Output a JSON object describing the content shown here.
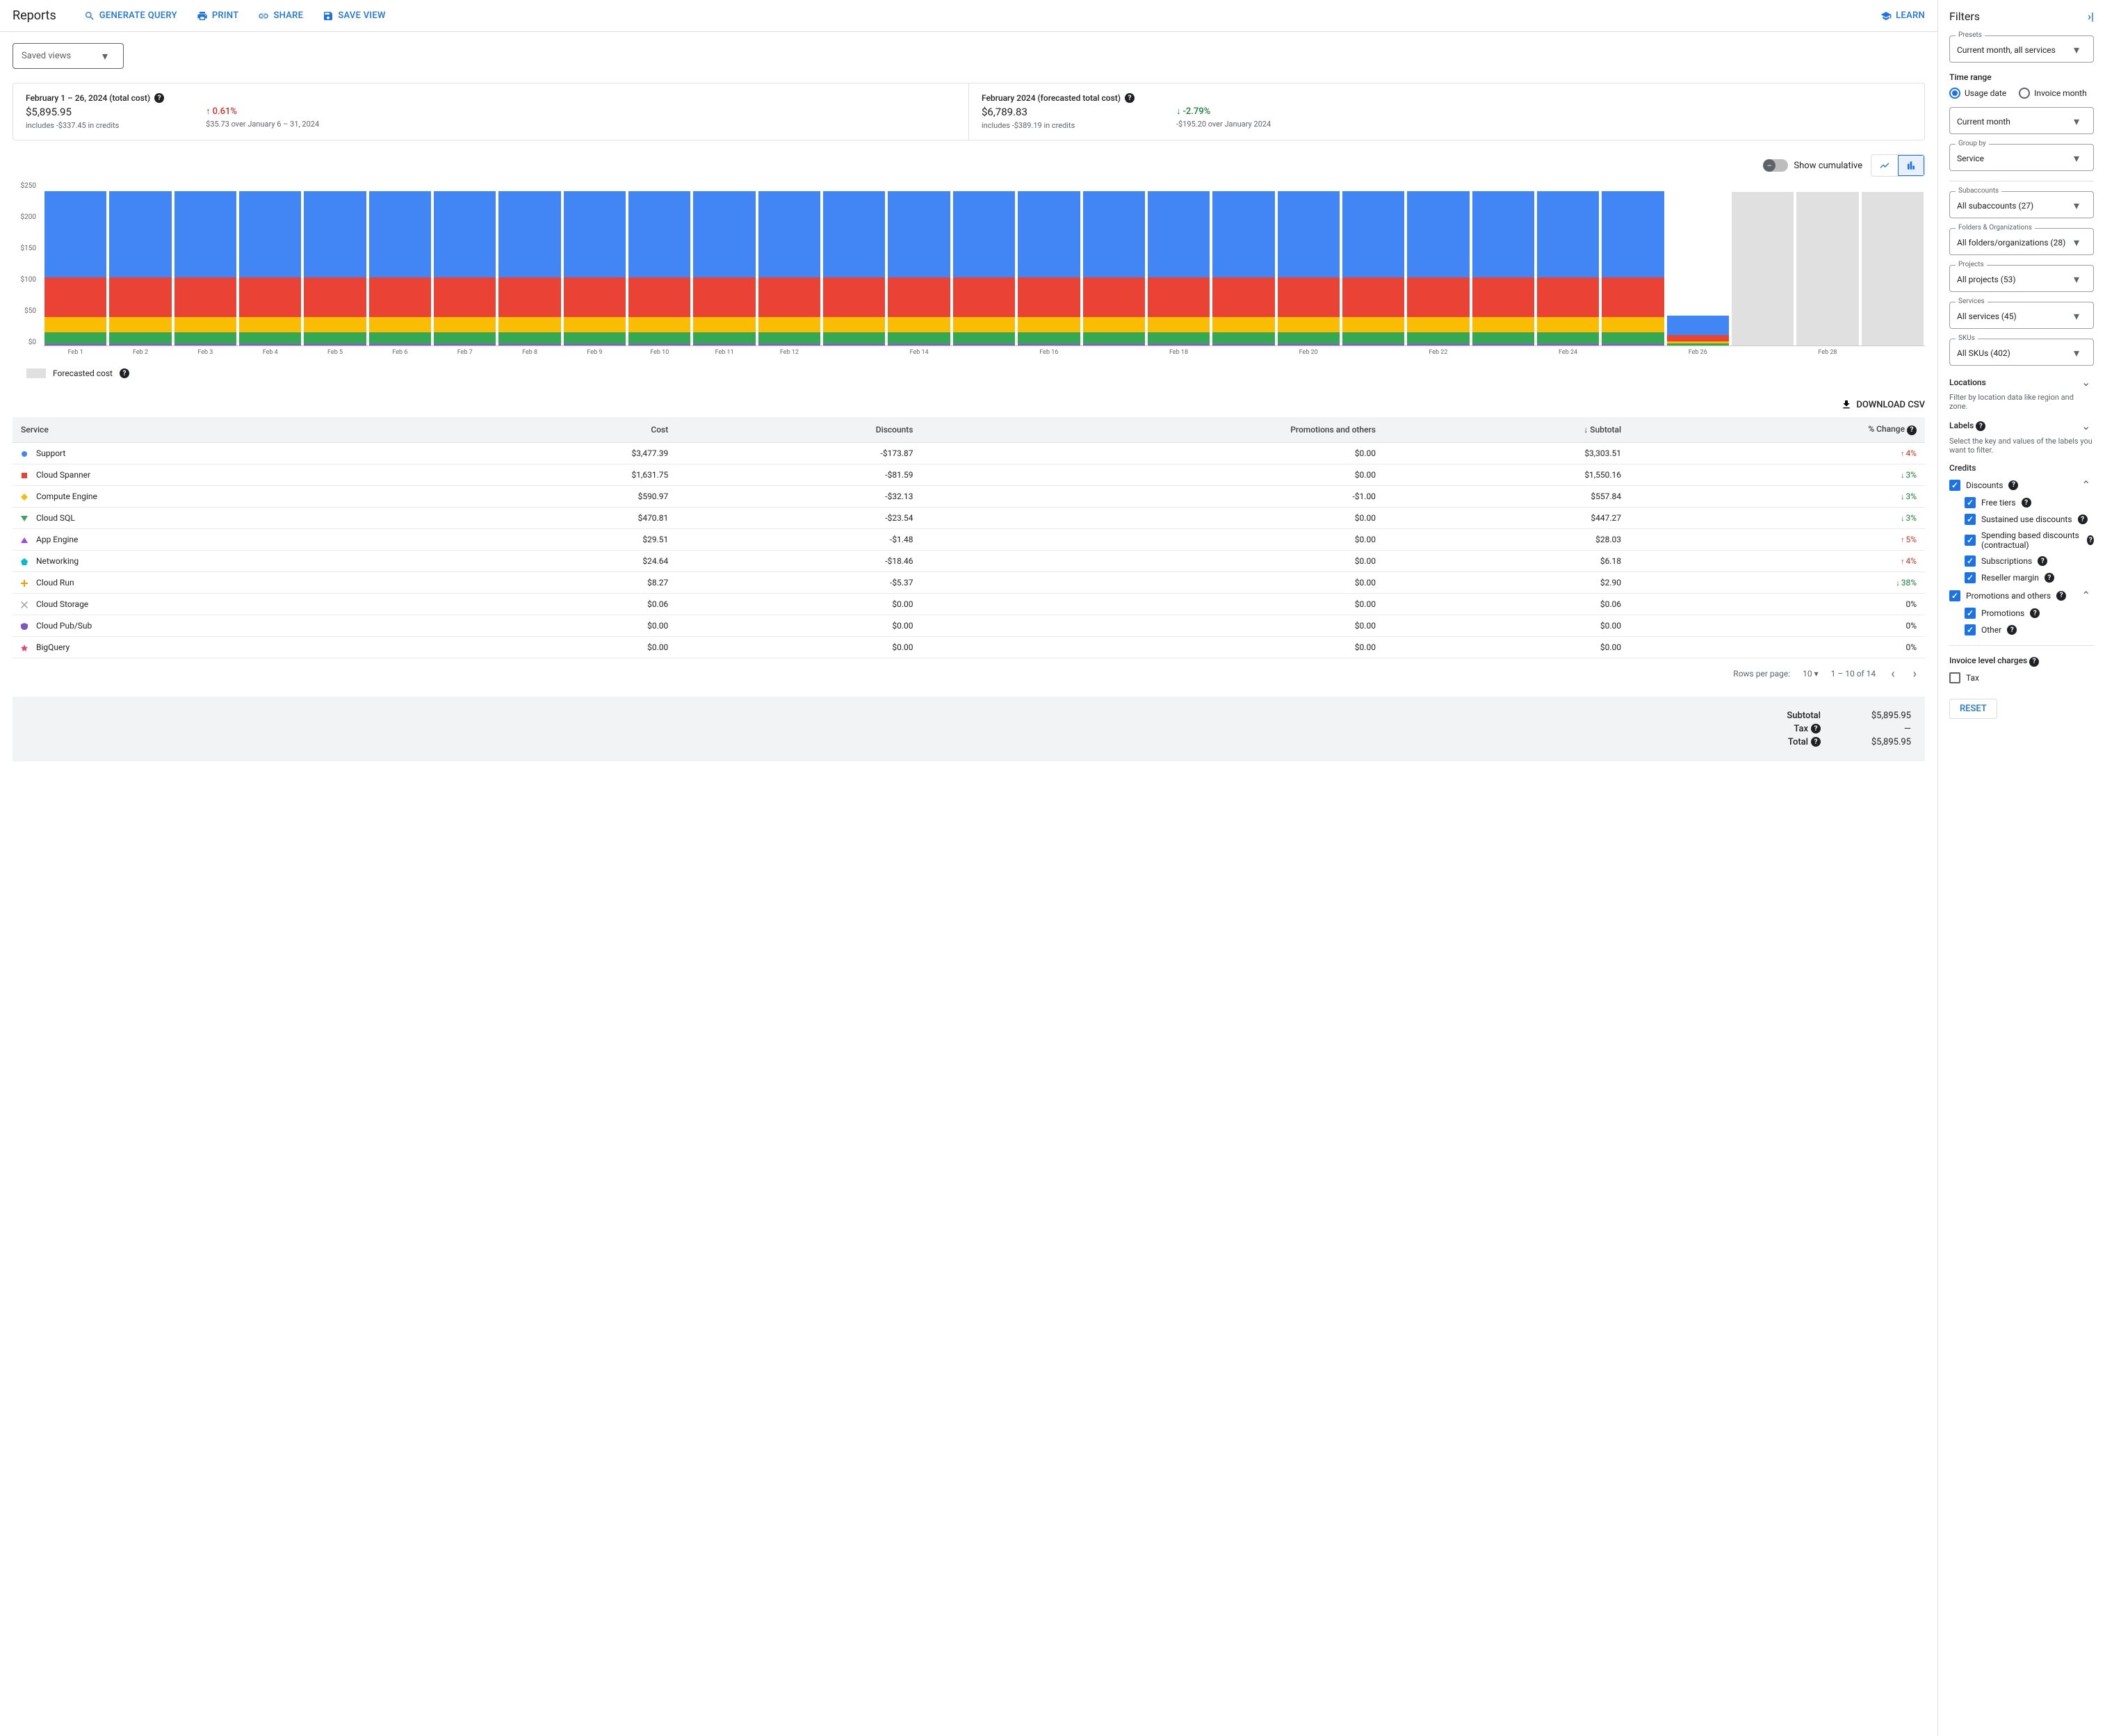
{
  "header": {
    "title": "Reports",
    "actions": {
      "generate_query": "GENERATE QUERY",
      "print": "PRINT",
      "share": "SHARE",
      "save_view": "SAVE VIEW",
      "learn": "LEARN"
    }
  },
  "saved_views_label": "Saved views",
  "summary": {
    "left": {
      "title": "February 1 – 26, 2024 (total cost)",
      "amount": "$5,895.95",
      "sub": "includes -$337.45 in credits",
      "delta": "0.61%",
      "delta_dir": "up",
      "delta_sub": "$35.73 over January 6 – 31, 2024"
    },
    "right": {
      "title": "February 2024 (forecasted total cost)",
      "amount": "$6,789.83",
      "sub": "includes -$389.19 in credits",
      "delta": "-2.79%",
      "delta_dir": "down",
      "delta_sub": "-$195.20 over January 2024"
    }
  },
  "chart": {
    "cumulative_label": "Show cumulative",
    "type": "stacked_bar",
    "y_ticks": [
      "$250",
      "$200",
      "$150",
      "$100",
      "$50",
      "$0"
    ],
    "y_max": 250,
    "stack_colors": {
      "support": "#4285f4",
      "spanner": "#ea4335",
      "compute": "#fbbc04",
      "sql": "#34a853",
      "other": "#a142f4",
      "forecast": "#e0e0e0"
    },
    "days": [
      {
        "label": "Feb 1",
        "stacks": [
          132,
          60,
          24,
          18,
          2
        ],
        "forecast": false
      },
      {
        "label": "Feb 2",
        "stacks": [
          132,
          60,
          24,
          18,
          2
        ],
        "forecast": false
      },
      {
        "label": "Feb 3",
        "stacks": [
          132,
          60,
          24,
          18,
          2
        ],
        "forecast": false
      },
      {
        "label": "Feb 4",
        "stacks": [
          132,
          60,
          24,
          18,
          2
        ],
        "forecast": false
      },
      {
        "label": "Feb 5",
        "stacks": [
          132,
          60,
          24,
          18,
          2
        ],
        "forecast": false
      },
      {
        "label": "Feb 6",
        "stacks": [
          132,
          60,
          24,
          18,
          2
        ],
        "forecast": false
      },
      {
        "label": "Feb 7",
        "stacks": [
          132,
          60,
          24,
          18,
          2
        ],
        "forecast": false
      },
      {
        "label": "Feb 8",
        "stacks": [
          132,
          60,
          24,
          18,
          2
        ],
        "forecast": false
      },
      {
        "label": "Feb 9",
        "stacks": [
          132,
          60,
          24,
          18,
          2
        ],
        "forecast": false
      },
      {
        "label": "Feb 10",
        "stacks": [
          132,
          60,
          24,
          18,
          2
        ],
        "forecast": false
      },
      {
        "label": "Feb 11",
        "stacks": [
          132,
          60,
          24,
          18,
          2
        ],
        "forecast": false
      },
      {
        "label": "Feb 12",
        "stacks": [
          132,
          60,
          24,
          18,
          2
        ],
        "forecast": false
      },
      {
        "label": "",
        "stacks": [
          132,
          60,
          24,
          18,
          2
        ],
        "forecast": false
      },
      {
        "label": "Feb 14",
        "stacks": [
          132,
          60,
          24,
          18,
          2
        ],
        "forecast": false
      },
      {
        "label": "",
        "stacks": [
          132,
          60,
          24,
          18,
          2
        ],
        "forecast": false
      },
      {
        "label": "Feb 16",
        "stacks": [
          132,
          60,
          24,
          18,
          2
        ],
        "forecast": false
      },
      {
        "label": "",
        "stacks": [
          132,
          60,
          24,
          18,
          2
        ],
        "forecast": false
      },
      {
        "label": "Feb 18",
        "stacks": [
          132,
          60,
          24,
          18,
          2
        ],
        "forecast": false
      },
      {
        "label": "",
        "stacks": [
          132,
          60,
          24,
          18,
          2
        ],
        "forecast": false
      },
      {
        "label": "Feb 20",
        "stacks": [
          132,
          60,
          24,
          18,
          2
        ],
        "forecast": false
      },
      {
        "label": "",
        "stacks": [
          132,
          60,
          24,
          18,
          2
        ],
        "forecast": false
      },
      {
        "label": "Feb 22",
        "stacks": [
          132,
          60,
          24,
          18,
          2
        ],
        "forecast": false
      },
      {
        "label": "",
        "stacks": [
          132,
          60,
          24,
          18,
          2
        ],
        "forecast": false
      },
      {
        "label": "Feb 24",
        "stacks": [
          132,
          60,
          24,
          18,
          2
        ],
        "forecast": false
      },
      {
        "label": "",
        "stacks": [
          132,
          60,
          24,
          18,
          2
        ],
        "forecast": false
      },
      {
        "label": "Feb 26",
        "stacks": [
          30,
          10,
          3,
          3,
          0
        ],
        "forecast": false
      },
      {
        "label": "",
        "stacks": [
          235
        ],
        "forecast": true
      },
      {
        "label": "Feb 28",
        "stacks": [
          235
        ],
        "forecast": true
      },
      {
        "label": "",
        "stacks": [
          235
        ],
        "forecast": true
      }
    ],
    "legend": "Forecasted cost"
  },
  "download_label": "DOWNLOAD CSV",
  "table": {
    "columns": [
      "Service",
      "Cost",
      "Discounts",
      "Promotions and others",
      "Subtotal",
      "% Change"
    ],
    "rows": [
      {
        "marker": "circle",
        "color": "#4285f4",
        "service": "Support",
        "cost": "$3,477.39",
        "discounts": "-$173.87",
        "promo": "$0.00",
        "subtotal": "$3,303.51",
        "change": "4%",
        "dir": "up"
      },
      {
        "marker": "square",
        "color": "#ea4335",
        "service": "Cloud Spanner",
        "cost": "$1,631.75",
        "discounts": "-$81.59",
        "promo": "$0.00",
        "subtotal": "$1,550.16",
        "change": "3%",
        "dir": "down"
      },
      {
        "marker": "diamond",
        "color": "#fbbc04",
        "service": "Compute Engine",
        "cost": "$590.97",
        "discounts": "-$32.13",
        "promo": "-$1.00",
        "subtotal": "$557.84",
        "change": "3%",
        "dir": "down"
      },
      {
        "marker": "triangle-down",
        "color": "#34a853",
        "service": "Cloud SQL",
        "cost": "$470.81",
        "discounts": "-$23.54",
        "promo": "$0.00",
        "subtotal": "$447.27",
        "change": "3%",
        "dir": "down"
      },
      {
        "marker": "triangle-up",
        "color": "#a142f4",
        "service": "App Engine",
        "cost": "$29.51",
        "discounts": "-$1.48",
        "promo": "$0.00",
        "subtotal": "$28.03",
        "change": "5%",
        "dir": "up"
      },
      {
        "marker": "pentagon",
        "color": "#00bcd4",
        "service": "Networking",
        "cost": "$24.64",
        "discounts": "-$18.46",
        "promo": "$0.00",
        "subtotal": "$6.18",
        "change": "4%",
        "dir": "up"
      },
      {
        "marker": "plus",
        "color": "#ff9800",
        "service": "Cloud Run",
        "cost": "$8.27",
        "discounts": "-$5.37",
        "promo": "$0.00",
        "subtotal": "$2.90",
        "change": "38%",
        "dir": "down"
      },
      {
        "marker": "cross",
        "color": "#9e9e9e",
        "service": "Cloud Storage",
        "cost": "$0.06",
        "discounts": "$0.00",
        "promo": "$0.00",
        "subtotal": "$0.06",
        "change": "0%",
        "dir": "none"
      },
      {
        "marker": "shield",
        "color": "#7e57c2",
        "service": "Cloud Pub/Sub",
        "cost": "$0.00",
        "discounts": "$0.00",
        "promo": "$0.00",
        "subtotal": "$0.00",
        "change": "0%",
        "dir": "none"
      },
      {
        "marker": "star",
        "color": "#ec407a",
        "service": "BigQuery",
        "cost": "$0.00",
        "discounts": "$0.00",
        "promo": "$0.00",
        "subtotal": "$0.00",
        "change": "0%",
        "dir": "none"
      }
    ]
  },
  "pager": {
    "rows_label": "Rows per page:",
    "rows_value": "10",
    "range": "1 – 10 of 14"
  },
  "totals": {
    "subtotal_label": "Subtotal",
    "subtotal": "$5,895.95",
    "tax_label": "Tax",
    "tax": "—",
    "total_label": "Total",
    "total": "$5,895.95"
  },
  "filters": {
    "title": "Filters",
    "presets": {
      "label": "Presets",
      "value": "Current month, all services"
    },
    "time_range_label": "Time range",
    "radio": {
      "usage": "Usage date",
      "invoice": "Invoice month"
    },
    "month": "Current month",
    "group_by": {
      "label": "Group by",
      "value": "Service"
    },
    "subaccounts": {
      "label": "Subaccounts",
      "value": "All subaccounts (27)"
    },
    "folders": {
      "label": "Folders & Organizations",
      "value": "All folders/organizations (28)"
    },
    "projects": {
      "label": "Projects",
      "value": "All projects (53)"
    },
    "services": {
      "label": "Services",
      "value": "All services (45)"
    },
    "skus": {
      "label": "SKUs",
      "value": "All SKUs (402)"
    },
    "locations_label": "Locations",
    "locations_sub": "Filter by location data like region and zone.",
    "labels_label": "Labels",
    "labels_sub": "Select the key and values of the labels you want to filter.",
    "credits_label": "Credits",
    "credit_items": {
      "discounts": "Discounts",
      "free_tiers": "Free tiers",
      "sustained": "Sustained use discounts",
      "spending": "Spending based discounts (contractual)",
      "subscriptions": "Subscriptions",
      "reseller": "Reseller margin",
      "promo_others": "Promotions and others",
      "promotions": "Promotions",
      "other": "Other"
    },
    "invoice_label": "Invoice level charges",
    "tax_cb": "Tax",
    "reset": "RESET"
  }
}
